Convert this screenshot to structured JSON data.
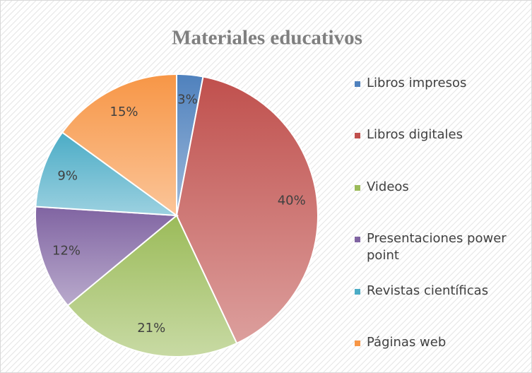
{
  "chart_data": {
    "type": "pie",
    "title": "Materiales educativos",
    "categories": [
      "Libros impresos",
      "Libros digitales",
      "Videos",
      "Presentaciones power point",
      "Revistas científicas",
      "Páginas web"
    ],
    "values": [
      3,
      40,
      21,
      12,
      9,
      15
    ],
    "value_labels": [
      "3%",
      "40%",
      "21%",
      "12%",
      "9%",
      "15%"
    ],
    "colors": [
      "#4f81bd",
      "#c0504d",
      "#9bbb59",
      "#8064a2",
      "#4bacc6",
      "#f79646"
    ],
    "legend": "right"
  }
}
